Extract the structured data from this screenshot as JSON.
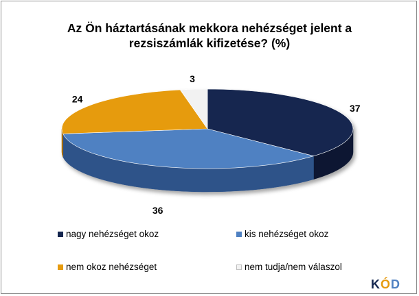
{
  "title": "Az Ön háztartásának mekkora nehézséget jelent a rezsiszámlák kifizetése? (%)",
  "chart_data": {
    "type": "pie",
    "title": "Az Ön háztartásának mekkora nehézséget jelent a rezsiszámlák kifizetése? (%)",
    "categories": [
      "nagy nehézséget okoz",
      "kis nehézséget okoz",
      "nem okoz nehézséget",
      "nem tudja/nem válaszol"
    ],
    "values": [
      37,
      36,
      24,
      3
    ],
    "value_labels": [
      "37",
      "36",
      "24",
      "3"
    ],
    "colors": [
      "#14264f",
      "#4f81c2",
      "#e69b0f",
      "#f2f2f2"
    ],
    "side_colors": [
      "#0a1731",
      "#2e5389",
      "#a86e08",
      "#bfbfbf"
    ],
    "legend_placement": "bottom"
  },
  "logo": {
    "text": "KÓD",
    "letters": [
      "K",
      "Ó",
      "D"
    ]
  }
}
